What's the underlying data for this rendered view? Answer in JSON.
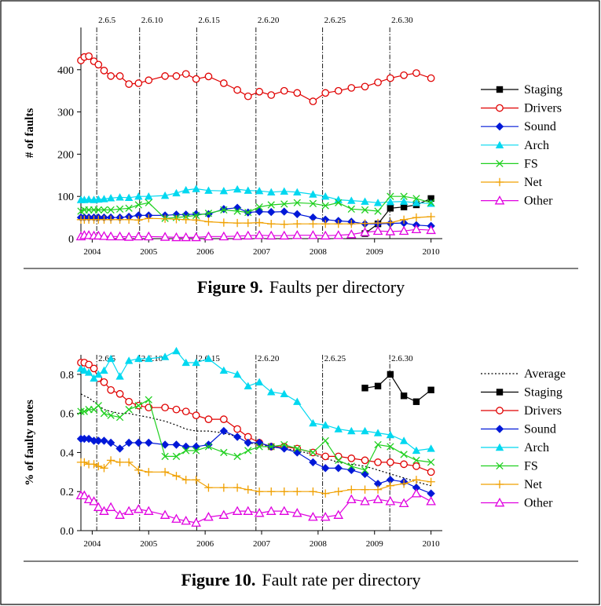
{
  "chart_data": [
    {
      "type": "line",
      "ylabel": "# of faults",
      "caption_label": "Figure 9.",
      "caption": "Faults per directory",
      "xlim": [
        2003.8,
        2010.2
      ],
      "xticks": [
        2004,
        2005,
        2006,
        2007,
        2008,
        2009,
        2010
      ],
      "ylim": [
        0,
        500
      ],
      "yticks": [
        0,
        100,
        200,
        300,
        400
      ],
      "releases": [
        {
          "label": "2.6.5",
          "x": 2004.08
        },
        {
          "label": "2.6.10",
          "x": 2004.84
        },
        {
          "label": "2.6.15",
          "x": 2005.85
        },
        {
          "label": "2.6.20",
          "x": 2006.9
        },
        {
          "label": "2.6.25",
          "x": 2008.08
        },
        {
          "label": "2.6.30",
          "x": 2009.27
        }
      ],
      "x": [
        2003.8,
        2003.86,
        2003.94,
        2004.03,
        2004.11,
        2004.21,
        2004.33,
        2004.49,
        2004.65,
        2004.82,
        2005.0,
        2005.29,
        2005.49,
        2005.66,
        2005.84,
        2006.06,
        2006.33,
        2006.57,
        2006.76,
        2006.96,
        2007.17,
        2007.4,
        2007.63,
        2007.91,
        2008.13,
        2008.36,
        2008.59,
        2008.83,
        2009.06,
        2009.28,
        2009.52,
        2009.74,
        2010.0
      ],
      "series": [
        {
          "name": "Staging",
          "color": "#000000",
          "marker": "square",
          "values": [
            null,
            null,
            null,
            null,
            null,
            null,
            null,
            null,
            null,
            null,
            null,
            null,
            null,
            null,
            null,
            null,
            null,
            null,
            null,
            null,
            null,
            null,
            null,
            null,
            null,
            null,
            null,
            12,
            35,
            72,
            75,
            80,
            95
          ]
        },
        {
          "name": "Drivers",
          "color": "#e00000",
          "marker": "circle",
          "values": [
            422,
            430,
            432,
            420,
            412,
            398,
            385,
            385,
            366,
            368,
            375,
            385,
            385,
            390,
            378,
            384,
            368,
            352,
            337,
            348,
            340,
            350,
            345,
            325,
            345,
            350,
            357,
            360,
            370,
            380,
            387,
            392,
            380
          ]
        },
        {
          "name": "Sound",
          "color": "#0018d8",
          "marker": "diamond",
          "values": [
            50,
            50,
            50,
            50,
            50,
            50,
            50,
            50,
            52,
            55,
            55,
            55,
            57,
            57,
            58,
            58,
            70,
            73,
            62,
            64,
            63,
            64,
            58,
            50,
            45,
            42,
            40,
            35,
            35,
            36,
            37,
            32,
            30
          ]
        },
        {
          "name": "Arch",
          "color": "#00d8f0",
          "marker": "triangle",
          "values": [
            92,
            92,
            93,
            92,
            93,
            94,
            96,
            98,
            97,
            100,
            100,
            102,
            108,
            115,
            118,
            114,
            113,
            117,
            114,
            113,
            110,
            112,
            110,
            105,
            100,
            92,
            90,
            88,
            85,
            87,
            88,
            85,
            83
          ]
        },
        {
          "name": "FS",
          "color": "#20d020",
          "marker": "x",
          "values": [
            65,
            68,
            68,
            68,
            68,
            68,
            68,
            70,
            72,
            80,
            85,
            48,
            50,
            52,
            55,
            60,
            68,
            65,
            62,
            75,
            80,
            82,
            85,
            83,
            78,
            85,
            70,
            68,
            65,
            100,
            100,
            95,
            85
          ]
        },
        {
          "name": "Net",
          "color": "#f0a000",
          "marker": "plus",
          "values": [
            45,
            45,
            45,
            45,
            45,
            45,
            45,
            45,
            45,
            44,
            48,
            47,
            46,
            45,
            44,
            40,
            38,
            37,
            37,
            38,
            35,
            34,
            35,
            35,
            35,
            35,
            35,
            36,
            37,
            38,
            45,
            50,
            52
          ]
        },
        {
          "name": "Other",
          "color": "#e000e0",
          "marker": "open-triangle",
          "values": [
            5,
            8,
            8,
            7,
            7,
            6,
            5,
            5,
            4,
            5,
            5,
            4,
            3,
            3,
            3,
            5,
            5,
            6,
            7,
            8,
            7,
            7,
            8,
            8,
            7,
            8,
            10,
            15,
            18,
            17,
            18,
            22,
            20
          ]
        }
      ]
    },
    {
      "type": "line",
      "ylabel": "% of faulty notes",
      "caption_label": "Figure 10.",
      "caption": "Fault rate per directory",
      "xlim": [
        2003.8,
        2010.2
      ],
      "xticks": [
        2004,
        2005,
        2006,
        2007,
        2008,
        2009,
        2010
      ],
      "ylim": [
        0,
        0.9
      ],
      "yticks": [
        {
          "value": 0,
          "label": "0.0"
        },
        0.2,
        0.4,
        0.6,
        0.8
      ],
      "releases": [
        {
          "label": "2.6.5",
          "x": 2004.08
        },
        {
          "label": "2.6.10",
          "x": 2004.84
        },
        {
          "label": "2.6.15",
          "x": 2005.85
        },
        {
          "label": "2.6.20",
          "x": 2006.9
        },
        {
          "label": "2.6.25",
          "x": 2008.08
        },
        {
          "label": "2.6.30",
          "x": 2009.27
        }
      ],
      "x": [
        2003.8,
        2003.86,
        2003.94,
        2004.03,
        2004.11,
        2004.21,
        2004.33,
        2004.49,
        2004.65,
        2004.82,
        2005.0,
        2005.29,
        2005.49,
        2005.66,
        2005.84,
        2006.06,
        2006.33,
        2006.57,
        2006.76,
        2006.96,
        2007.17,
        2007.4,
        2007.63,
        2007.91,
        2008.13,
        2008.36,
        2008.59,
        2008.83,
        2009.06,
        2009.28,
        2009.52,
        2009.74,
        2010.0
      ],
      "series": [
        {
          "name": "Average",
          "color": "#000000",
          "marker": "none",
          "dash": "dotted",
          "values": [
            0.7,
            0.69,
            0.68,
            0.66,
            0.64,
            0.62,
            0.61,
            0.6,
            0.6,
            0.59,
            0.58,
            0.56,
            0.54,
            0.52,
            0.51,
            0.51,
            0.5,
            0.48,
            0.45,
            0.44,
            0.43,
            0.42,
            0.41,
            0.39,
            0.37,
            0.35,
            0.34,
            0.33,
            0.31,
            0.29,
            0.27,
            0.25,
            0.23
          ]
        },
        {
          "name": "Staging",
          "color": "#000000",
          "marker": "square",
          "values": [
            null,
            null,
            null,
            null,
            null,
            null,
            null,
            null,
            null,
            null,
            null,
            null,
            null,
            null,
            null,
            null,
            null,
            null,
            null,
            null,
            null,
            null,
            null,
            null,
            null,
            null,
            null,
            0.73,
            0.74,
            0.8,
            0.69,
            0.66,
            0.72
          ]
        },
        {
          "name": "Drivers",
          "color": "#e00000",
          "marker": "circle",
          "values": [
            0.86,
            0.86,
            0.85,
            0.83,
            0.78,
            0.76,
            0.72,
            0.7,
            0.66,
            0.64,
            0.63,
            0.63,
            0.62,
            0.61,
            0.59,
            0.57,
            0.57,
            0.52,
            0.48,
            0.45,
            0.43,
            0.43,
            0.42,
            0.4,
            0.38,
            0.38,
            0.37,
            0.36,
            0.35,
            0.35,
            0.34,
            0.33,
            0.3
          ]
        },
        {
          "name": "Sound",
          "color": "#0018d8",
          "marker": "diamond",
          "values": [
            0.47,
            0.47,
            0.47,
            0.46,
            0.46,
            0.46,
            0.45,
            0.42,
            0.45,
            0.45,
            0.45,
            0.44,
            0.44,
            0.43,
            0.43,
            0.44,
            0.51,
            0.48,
            0.45,
            0.45,
            0.43,
            0.42,
            0.4,
            0.35,
            0.32,
            0.32,
            0.31,
            0.29,
            0.24,
            0.26,
            0.25,
            0.22,
            0.19
          ]
        },
        {
          "name": "Arch",
          "color": "#00d8f0",
          "marker": "triangle",
          "values": [
            0.83,
            0.82,
            0.81,
            0.78,
            0.8,
            0.82,
            0.88,
            0.79,
            0.87,
            0.88,
            0.88,
            0.89,
            0.92,
            0.86,
            0.86,
            0.88,
            0.82,
            0.8,
            0.74,
            0.76,
            0.71,
            0.7,
            0.66,
            0.55,
            0.54,
            0.52,
            0.51,
            0.51,
            0.5,
            0.49,
            0.46,
            0.41,
            0.42
          ]
        },
        {
          "name": "FS",
          "color": "#20d020",
          "marker": "x",
          "values": [
            0.61,
            0.61,
            0.62,
            0.62,
            0.64,
            0.6,
            0.59,
            0.58,
            0.62,
            0.64,
            0.67,
            0.38,
            0.38,
            0.41,
            0.41,
            0.43,
            0.4,
            0.38,
            0.41,
            0.43,
            0.43,
            0.44,
            0.42,
            0.4,
            0.46,
            0.36,
            0.33,
            0.31,
            0.44,
            0.43,
            0.39,
            0.36,
            0.35
          ]
        },
        {
          "name": "Net",
          "color": "#f0a000",
          "marker": "plus",
          "values": [
            0.35,
            0.35,
            0.34,
            0.34,
            0.33,
            0.32,
            0.36,
            0.35,
            0.35,
            0.31,
            0.3,
            0.3,
            0.28,
            0.26,
            0.26,
            0.22,
            0.22,
            0.22,
            0.21,
            0.2,
            0.2,
            0.2,
            0.2,
            0.2,
            0.19,
            0.2,
            0.21,
            0.21,
            0.21,
            0.23,
            0.24,
            0.26,
            0.25
          ]
        },
        {
          "name": "Other",
          "color": "#e000e0",
          "marker": "open-triangle",
          "values": [
            0.18,
            0.18,
            0.16,
            0.15,
            0.12,
            0.1,
            0.12,
            0.08,
            0.1,
            0.11,
            0.1,
            0.08,
            0.06,
            0.05,
            0.04,
            0.07,
            0.08,
            0.1,
            0.1,
            0.09,
            0.1,
            0.1,
            0.09,
            0.07,
            0.07,
            0.08,
            0.16,
            0.15,
            0.16,
            0.15,
            0.14,
            0.19,
            0.15
          ]
        }
      ]
    }
  ]
}
